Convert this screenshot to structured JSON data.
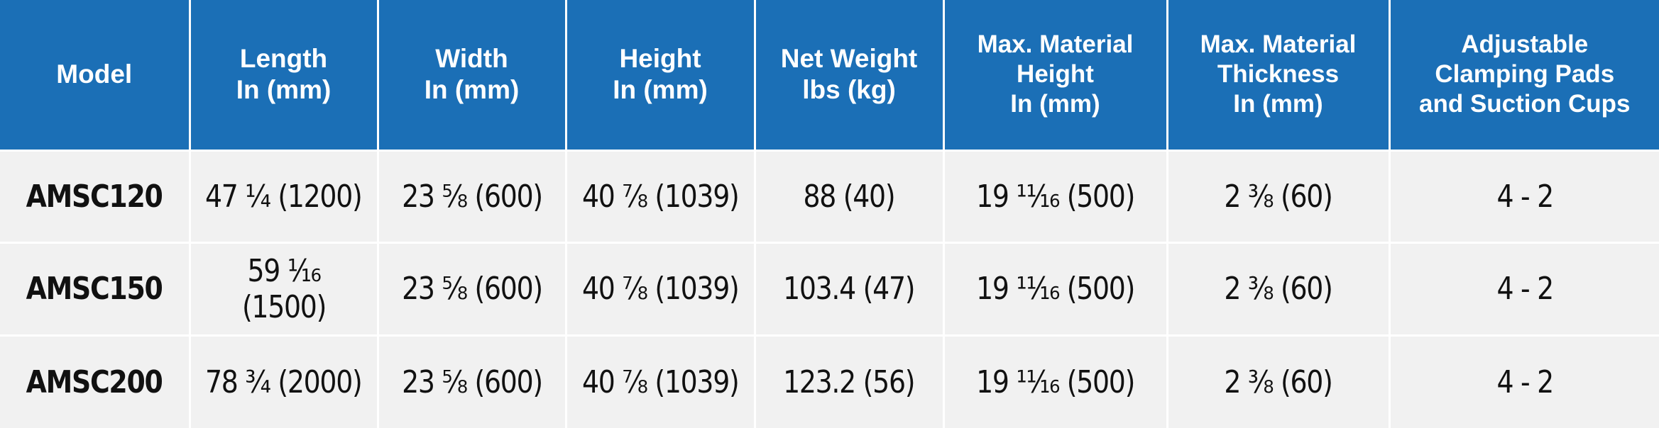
{
  "table": {
    "header": [
      [
        "Model"
      ],
      [
        "Length",
        "In (mm)"
      ],
      [
        "Width",
        "In (mm)"
      ],
      [
        "Height",
        "In (mm)"
      ],
      [
        "Net Weight",
        "lbs (kg)"
      ],
      [
        "Max. Material",
        "Height",
        "In (mm)"
      ],
      [
        "Max. Material",
        "Thickness",
        "In (mm)"
      ],
      [
        "Adjustable",
        "Clamping Pads",
        "and Suction Cups"
      ]
    ],
    "rows": [
      [
        "AMSC120",
        "47 ¼ (1200)",
        "23 ⅝ (600)",
        "40 ⅞ (1039)",
        "88 (40)",
        "19 ¹¹⁄₁₆ (500)",
        "2 ⅜ (60)",
        "4 - 2"
      ],
      [
        "AMSC150",
        "59 ¹⁄₁₆ (1500)",
        "23 ⅝ (600)",
        "40 ⅞ (1039)",
        "103.4 (47)",
        "19 ¹¹⁄₁₆ (500)",
        "2 ⅜ (60)",
        "4 - 2"
      ],
      [
        "AMSC200",
        "78 ¾ (2000)",
        "23 ⅝ (600)",
        "40 ⅞ (1039)",
        "123.2 (56)",
        "19 ¹¹⁄₁₆ (500)",
        "2 ⅜ (60)",
        "4 - 2"
      ]
    ]
  }
}
